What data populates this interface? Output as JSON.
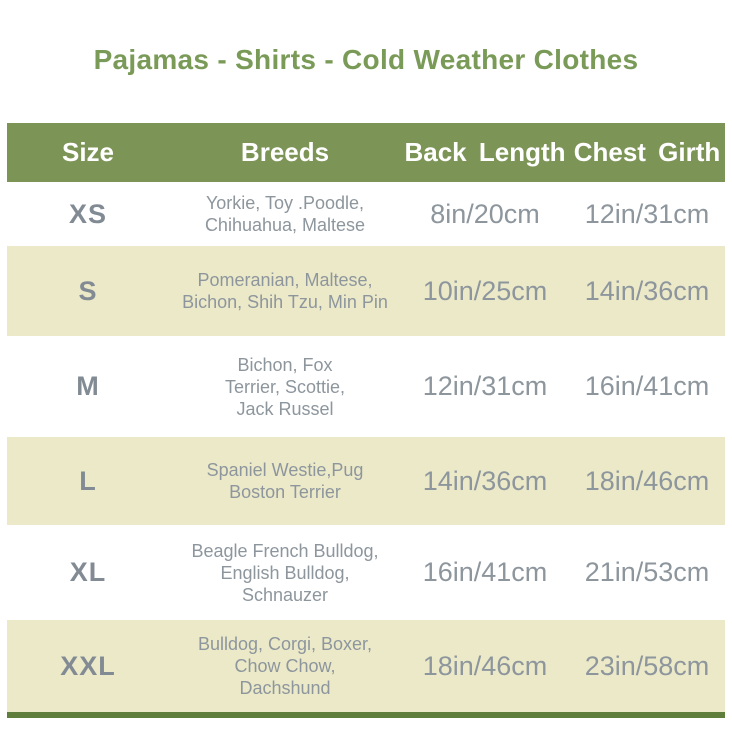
{
  "title": "Pajamas - Shirts - Cold Weather Clothes",
  "table": {
    "headers": [
      "Size",
      "Breeds",
      "Back Length",
      "Chest Girth"
    ],
    "rows": [
      {
        "size": "XS",
        "breeds": [
          "Yorkie, Toy .Poodle,",
          "Chihuahua, Maltese"
        ],
        "back": "8in/20cm",
        "chest": "12in/31cm"
      },
      {
        "size": "S",
        "breeds": [
          "Pomeranian, Maltese,",
          "Bichon, Shih Tzu, Min Pin"
        ],
        "back": "10in/25cm",
        "chest": "14in/36cm"
      },
      {
        "size": "M",
        "breeds": [
          "Bichon, Fox",
          "Terrier, Scottie,",
          "Jack Russel"
        ],
        "back": "12in/31cm",
        "chest": "16in/41cm"
      },
      {
        "size": "L",
        "breeds": [
          "Spaniel Westie,Pug",
          "Boston Terrier"
        ],
        "back": "14in/36cm",
        "chest": "18in/46cm"
      },
      {
        "size": "XL",
        "breeds": [
          "Beagle French Bulldog,",
          "English Bulldog,",
          "Schnauzer"
        ],
        "back": "16in/41cm",
        "chest": "21in/53cm"
      },
      {
        "size": "XXL",
        "breeds": [
          "Bulldog, Corgi, Boxer,",
          "Chow Chow,",
          "Dachshund"
        ],
        "back": "18in/46cm",
        "chest": "23in/58cm"
      }
    ]
  },
  "colors": {
    "header_bg": "#7c9456",
    "alt_row_bg": "#ece9c8",
    "title_text": "#7a9a58",
    "body_text": "#8d969d",
    "size_text": "#828b93",
    "header_text": "#ffffff",
    "bottom_border": "#5f7e3c"
  },
  "chart_data": {
    "type": "table",
    "title": "Pajamas - Shirts - Cold Weather Clothes",
    "columns": [
      "Size",
      "Breeds",
      "Back Length",
      "Chest Girth"
    ],
    "rows": [
      [
        "XS",
        "Yorkie, Toy .Poodle, Chihuahua, Maltese",
        "8in/20cm",
        "12in/31cm"
      ],
      [
        "S",
        "Pomeranian, Maltese, Bichon, Shih Tzu, Min Pin",
        "10in/25cm",
        "14in/36cm"
      ],
      [
        "M",
        "Bichon, Fox Terrier, Scottie, Jack Russel",
        "12in/31cm",
        "16in/41cm"
      ],
      [
        "L",
        "Spaniel Westie,Pug Boston Terrier",
        "14in/36cm",
        "18in/46cm"
      ],
      [
        "XL",
        "Beagle French Bulldog, English Bulldog, Schnauzer",
        "16in/41cm",
        "21in/53cm"
      ],
      [
        "XXL",
        "Bulldog, Corgi, Boxer, Chow Chow, Dachshund",
        "18in/46cm",
        "23in/58cm"
      ]
    ]
  }
}
